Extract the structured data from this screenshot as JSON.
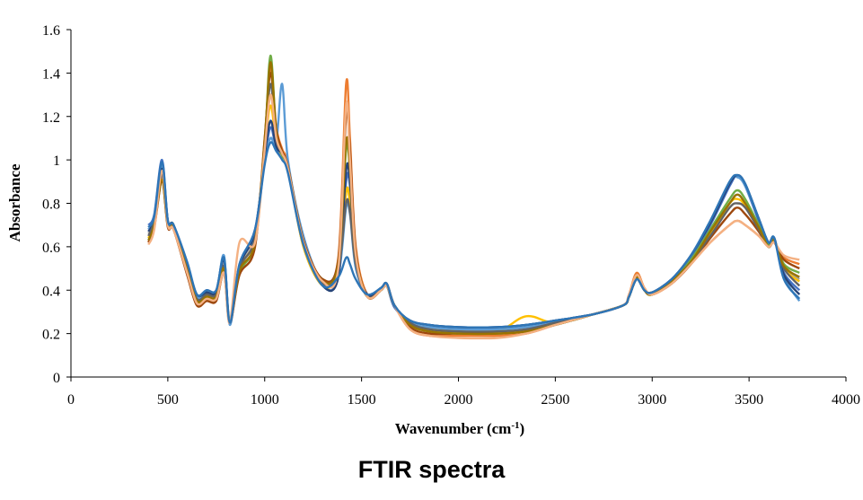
{
  "caption": "FTIR spectra",
  "chart_data": {
    "type": "line",
    "title": "",
    "xlabel": "Wavenumber (cm",
    "xlabel_sup": "-1",
    "xlabel_close": ")",
    "ylabel": "Absorbance",
    "xlim": [
      0,
      4000
    ],
    "ylim": [
      0,
      1.6
    ],
    "xticks": [
      0,
      500,
      1000,
      1500,
      2000,
      2500,
      3000,
      3500,
      4000
    ],
    "xtick_labels": [
      "0",
      "500",
      "1000",
      "1500",
      "2000",
      "2500",
      "3000",
      "3500",
      "4000"
    ],
    "yticks": [
      0,
      0.2,
      0.4,
      0.6,
      0.8,
      1.0,
      1.2,
      1.4,
      1.6
    ],
    "ytick_labels": [
      "0",
      "0.2",
      "0.4",
      "0.6",
      "0.8",
      "1",
      "1.2",
      "1.4",
      "1.6"
    ],
    "grid": false,
    "legend": "none",
    "x": [
      400,
      430,
      470,
      500,
      530,
      600,
      650,
      700,
      750,
      790,
      820,
      870,
      950,
      1000,
      1030,
      1060,
      1090,
      1120,
      1200,
      1300,
      1380,
      1420,
      1440,
      1470,
      1530,
      1600,
      1630,
      1670,
      1750,
      1850,
      2000,
      2200,
      2350,
      2500,
      2700,
      2850,
      2880,
      2920,
      2960,
      3000,
      3100,
      3200,
      3300,
      3400,
      3440,
      3480,
      3550,
      3600,
      3630,
      3680,
      3760
    ],
    "series": [
      {
        "color": "#4472c4",
        "values": [
          0.7,
          0.75,
          1.0,
          0.72,
          0.7,
          0.52,
          0.38,
          0.4,
          0.4,
          0.55,
          0.26,
          0.52,
          0.68,
          1.0,
          1.15,
          1.05,
          1.02,
          0.95,
          0.62,
          0.42,
          0.46,
          0.9,
          0.88,
          0.55,
          0.38,
          0.4,
          0.42,
          0.32,
          0.26,
          0.24,
          0.23,
          0.23,
          0.24,
          0.26,
          0.29,
          0.33,
          0.37,
          0.45,
          0.4,
          0.39,
          0.45,
          0.55,
          0.7,
          0.88,
          0.93,
          0.88,
          0.72,
          0.62,
          0.64,
          0.48,
          0.4
        ]
      },
      {
        "color": "#ed7d31",
        "values": [
          0.62,
          0.7,
          0.95,
          0.7,
          0.68,
          0.48,
          0.34,
          0.36,
          0.36,
          0.48,
          0.25,
          0.48,
          0.62,
          1.1,
          1.42,
          1.15,
          1.05,
          0.98,
          0.62,
          0.45,
          0.55,
          1.35,
          1.1,
          0.6,
          0.38,
          0.41,
          0.43,
          0.33,
          0.22,
          0.19,
          0.19,
          0.19,
          0.2,
          0.24,
          0.29,
          0.33,
          0.38,
          0.48,
          0.41,
          0.38,
          0.43,
          0.52,
          0.62,
          0.7,
          0.72,
          0.7,
          0.65,
          0.6,
          0.62,
          0.55,
          0.52
        ]
      },
      {
        "color": "#a5a5a5",
        "values": [
          0.66,
          0.72,
          0.92,
          0.7,
          0.69,
          0.5,
          0.36,
          0.38,
          0.38,
          0.52,
          0.27,
          0.5,
          0.65,
          1.05,
          1.3,
          1.1,
          1.02,
          0.96,
          0.6,
          0.42,
          0.48,
          0.85,
          0.8,
          0.52,
          0.37,
          0.4,
          0.42,
          0.33,
          0.25,
          0.23,
          0.22,
          0.22,
          0.23,
          0.25,
          0.29,
          0.33,
          0.37,
          0.45,
          0.4,
          0.39,
          0.44,
          0.53,
          0.66,
          0.8,
          0.84,
          0.8,
          0.68,
          0.6,
          0.63,
          0.5,
          0.45
        ]
      },
      {
        "color": "#ffc000",
        "values": [
          0.64,
          0.71,
          0.94,
          0.71,
          0.69,
          0.5,
          0.36,
          0.38,
          0.38,
          0.5,
          0.26,
          0.5,
          0.64,
          1.05,
          1.25,
          1.08,
          1.02,
          0.96,
          0.6,
          0.42,
          0.48,
          0.85,
          0.8,
          0.52,
          0.37,
          0.4,
          0.42,
          0.33,
          0.25,
          0.22,
          0.21,
          0.21,
          0.28,
          0.25,
          0.29,
          0.33,
          0.37,
          0.45,
          0.4,
          0.39,
          0.44,
          0.53,
          0.66,
          0.8,
          0.82,
          0.79,
          0.68,
          0.6,
          0.63,
          0.5,
          0.44
        ]
      },
      {
        "color": "#5b9bd5",
        "values": [
          0.68,
          0.74,
          0.98,
          0.72,
          0.7,
          0.52,
          0.37,
          0.39,
          0.39,
          0.56,
          0.24,
          0.52,
          0.66,
          1.0,
          1.1,
          1.08,
          1.35,
          1.0,
          0.65,
          0.43,
          0.47,
          0.78,
          0.75,
          0.5,
          0.38,
          0.41,
          0.43,
          0.33,
          0.25,
          0.23,
          0.22,
          0.22,
          0.23,
          0.25,
          0.29,
          0.33,
          0.37,
          0.46,
          0.4,
          0.39,
          0.45,
          0.56,
          0.72,
          0.9,
          0.92,
          0.88,
          0.73,
          0.62,
          0.64,
          0.46,
          0.35
        ]
      },
      {
        "color": "#70ad47",
        "values": [
          0.63,
          0.7,
          0.9,
          0.7,
          0.7,
          0.48,
          0.34,
          0.36,
          0.36,
          0.5,
          0.26,
          0.48,
          0.62,
          1.08,
          1.48,
          1.12,
          1.02,
          0.96,
          0.62,
          0.45,
          0.52,
          1.05,
          0.95,
          0.55,
          0.37,
          0.4,
          0.42,
          0.33,
          0.24,
          0.21,
          0.2,
          0.2,
          0.21,
          0.24,
          0.29,
          0.33,
          0.37,
          0.47,
          0.4,
          0.38,
          0.44,
          0.54,
          0.68,
          0.82,
          0.86,
          0.82,
          0.7,
          0.61,
          0.63,
          0.52,
          0.48
        ]
      },
      {
        "color": "#264478",
        "values": [
          0.67,
          0.73,
          0.96,
          0.72,
          0.7,
          0.52,
          0.38,
          0.39,
          0.39,
          0.54,
          0.25,
          0.51,
          0.67,
          1.02,
          1.18,
          1.06,
          1.03,
          0.96,
          0.62,
          0.42,
          0.46,
          0.95,
          0.9,
          0.54,
          0.38,
          0.41,
          0.43,
          0.33,
          0.26,
          0.24,
          0.23,
          0.23,
          0.24,
          0.26,
          0.29,
          0.33,
          0.37,
          0.45,
          0.4,
          0.39,
          0.45,
          0.56,
          0.71,
          0.89,
          0.93,
          0.89,
          0.73,
          0.62,
          0.64,
          0.47,
          0.38
        ]
      },
      {
        "color": "#9e480e",
        "values": [
          0.62,
          0.69,
          0.9,
          0.69,
          0.68,
          0.47,
          0.33,
          0.35,
          0.35,
          0.48,
          0.25,
          0.47,
          0.6,
          1.1,
          1.4,
          1.14,
          1.04,
          0.97,
          0.63,
          0.45,
          0.54,
          1.2,
          1.05,
          0.58,
          0.37,
          0.4,
          0.42,
          0.33,
          0.23,
          0.2,
          0.2,
          0.2,
          0.21,
          0.24,
          0.29,
          0.33,
          0.37,
          0.47,
          0.4,
          0.38,
          0.43,
          0.52,
          0.64,
          0.75,
          0.78,
          0.75,
          0.67,
          0.6,
          0.62,
          0.54,
          0.5
        ]
      },
      {
        "color": "#636363",
        "values": [
          0.65,
          0.72,
          0.93,
          0.7,
          0.69,
          0.5,
          0.36,
          0.38,
          0.38,
          0.51,
          0.26,
          0.5,
          0.64,
          1.06,
          1.35,
          1.1,
          1.03,
          0.96,
          0.61,
          0.43,
          0.5,
          0.8,
          0.76,
          0.52,
          0.37,
          0.4,
          0.42,
          0.33,
          0.25,
          0.22,
          0.21,
          0.21,
          0.22,
          0.25,
          0.29,
          0.33,
          0.37,
          0.45,
          0.4,
          0.39,
          0.44,
          0.53,
          0.65,
          0.78,
          0.8,
          0.78,
          0.68,
          0.6,
          0.63,
          0.5,
          0.42
        ]
      },
      {
        "color": "#997300",
        "values": [
          0.63,
          0.7,
          0.91,
          0.7,
          0.69,
          0.49,
          0.35,
          0.37,
          0.37,
          0.5,
          0.26,
          0.49,
          0.62,
          1.08,
          1.45,
          1.12,
          1.03,
          0.96,
          0.62,
          0.44,
          0.52,
          1.08,
          0.96,
          0.56,
          0.37,
          0.4,
          0.42,
          0.33,
          0.24,
          0.21,
          0.2,
          0.2,
          0.21,
          0.24,
          0.29,
          0.33,
          0.37,
          0.46,
          0.4,
          0.38,
          0.44,
          0.53,
          0.67,
          0.8,
          0.84,
          0.8,
          0.69,
          0.6,
          0.63,
          0.51,
          0.46
        ]
      },
      {
        "color": "#f4b183",
        "values": [
          0.61,
          0.68,
          0.95,
          0.7,
          0.68,
          0.48,
          0.34,
          0.36,
          0.36,
          0.48,
          0.25,
          0.62,
          0.62,
          1.05,
          1.3,
          1.1,
          1.03,
          0.96,
          0.62,
          0.44,
          0.5,
          1.25,
          1.0,
          0.56,
          0.37,
          0.4,
          0.42,
          0.33,
          0.22,
          0.19,
          0.18,
          0.18,
          0.2,
          0.24,
          0.29,
          0.33,
          0.38,
          0.47,
          0.41,
          0.38,
          0.43,
          0.52,
          0.62,
          0.7,
          0.72,
          0.7,
          0.65,
          0.6,
          0.62,
          0.56,
          0.54
        ]
      },
      {
        "color": "#2e75b6",
        "values": [
          0.69,
          0.74,
          0.99,
          0.72,
          0.7,
          0.53,
          0.38,
          0.4,
          0.4,
          0.55,
          0.25,
          0.52,
          0.68,
          0.98,
          1.08,
          1.04,
          1.0,
          0.94,
          0.61,
          0.42,
          0.46,
          0.55,
          0.52,
          0.45,
          0.38,
          0.41,
          0.43,
          0.33,
          0.26,
          0.24,
          0.23,
          0.23,
          0.24,
          0.26,
          0.29,
          0.33,
          0.37,
          0.45,
          0.4,
          0.39,
          0.45,
          0.56,
          0.72,
          0.9,
          0.93,
          0.89,
          0.73,
          0.62,
          0.64,
          0.45,
          0.36
        ]
      }
    ]
  }
}
